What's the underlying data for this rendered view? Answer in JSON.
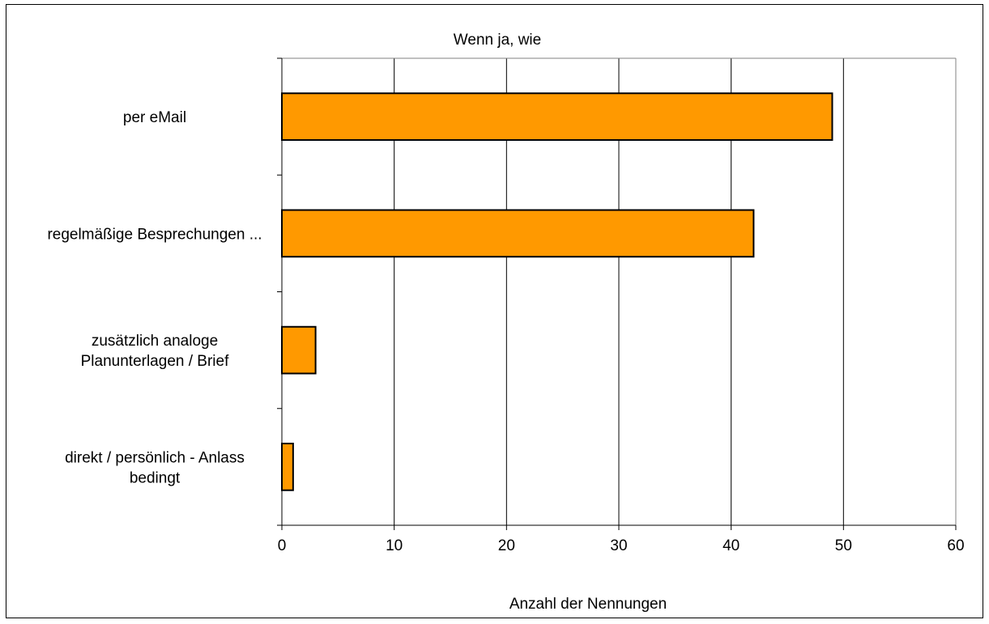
{
  "chart_data": {
    "type": "bar",
    "orientation": "horizontal",
    "title": "Wenn ja, wie",
    "xlabel": "Anzahl der Nennungen",
    "ylabel": "",
    "categories": [
      "per eMail",
      "regelmäßige Besprechungen ...",
      "zusätzlich analoge Planunterlagen / Brief",
      "direkt / persönlich - Anlass bedingt"
    ],
    "category_lines": [
      [
        "per eMail"
      ],
      [
        "regelmäßige Besprechungen ..."
      ],
      [
        "zusätzlich analoge",
        "Planunterlagen / Brief"
      ],
      [
        "direkt / persönlich - Anlass",
        "bedingt"
      ]
    ],
    "values": [
      49,
      42,
      3,
      1
    ],
    "xlim": [
      0,
      60
    ],
    "xticks": [
      0,
      10,
      20,
      30,
      40,
      50,
      60
    ],
    "grid": true,
    "legend": "none",
    "colors": {
      "bar": "#ff9900",
      "bar_stroke": "#000000",
      "grid": "#000000",
      "plot_border": "#808080",
      "frame": "#000000"
    }
  }
}
